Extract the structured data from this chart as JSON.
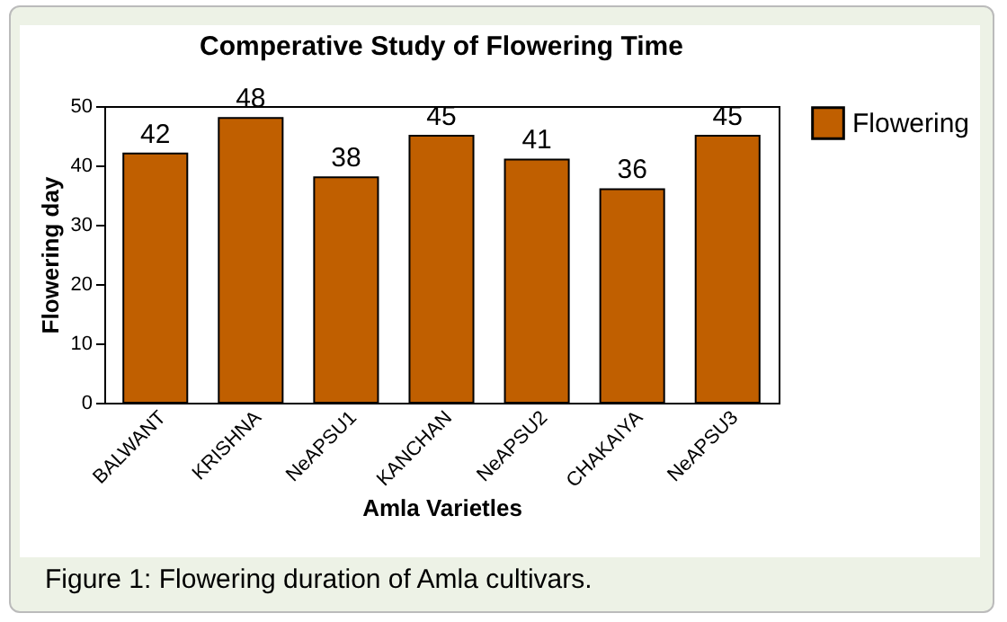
{
  "chart_data": {
    "type": "bar",
    "title": "Comperative Study of Flowering Time",
    "xlabel": "Amla Varietles",
    "ylabel": "Flowering day",
    "categories": [
      "BALWANT",
      "KRISHNA",
      "NeAPSU1",
      "KANCHAN",
      "NeAPSU2",
      "CHAKAIYA",
      "NeAPSU3"
    ],
    "series": [
      {
        "name": "Flowering",
        "color": "#c05f00",
        "values": [
          42,
          48,
          38,
          45,
          41,
          36,
          45
        ]
      }
    ],
    "ylim": [
      0,
      50
    ],
    "yticks": [
      0,
      10,
      20,
      30,
      40,
      50
    ],
    "data_labels": true,
    "legend": "top right",
    "grid": false,
    "annotations": [
      "Figure 1: Flowering duration of Amla cultivars."
    ]
  }
}
